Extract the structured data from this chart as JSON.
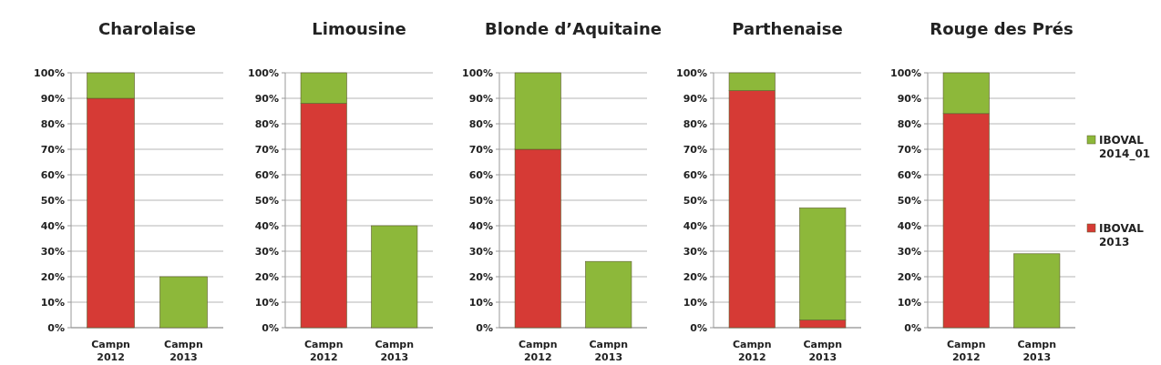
{
  "chart_data": [
    {
      "type": "bar",
      "title": "Charolaise",
      "categories": [
        "Campn 2012",
        "Campn 2013"
      ],
      "stacked": true,
      "ylim": [
        0,
        100
      ],
      "yticks": [
        {
          "value": 0,
          "label": "0%"
        },
        {
          "value": 10,
          "label": "10%"
        },
        {
          "value": 20,
          "label": "20%"
        },
        {
          "value": 30,
          "label": "30%"
        },
        {
          "value": 40,
          "label": "40%"
        },
        {
          "value": 50,
          "label": "50%"
        },
        {
          "value": 60,
          "label": "60%"
        },
        {
          "value": 70,
          "label": "70%"
        },
        {
          "value": 80,
          "label": "80%"
        },
        {
          "value": 90,
          "label": "90%"
        },
        {
          "value": 100,
          "label": "100%"
        }
      ],
      "grid": "y",
      "legend": false,
      "series": [
        {
          "color": "#d63a35",
          "values": [
            90,
            0
          ]
        },
        {
          "color": "#8db83a",
          "values": [
            10,
            20
          ]
        }
      ]
    },
    {
      "type": "bar",
      "title": "Limousine",
      "categories": [
        "Campn 2012",
        "Campn 2013"
      ],
      "stacked": true,
      "ylim": [
        0,
        100
      ],
      "yticks": [
        {
          "value": 0,
          "label": "0%"
        },
        {
          "value": 10,
          "label": "10%"
        },
        {
          "value": 20,
          "label": "20%"
        },
        {
          "value": 30,
          "label": "30%"
        },
        {
          "value": 40,
          "label": "40%"
        },
        {
          "value": 50,
          "label": "50%"
        },
        {
          "value": 60,
          "label": "60%"
        },
        {
          "value": 70,
          "label": "70%"
        },
        {
          "value": 80,
          "label": "80%"
        },
        {
          "value": 90,
          "label": "90%"
        },
        {
          "value": 100,
          "label": "100%"
        }
      ],
      "grid": "y",
      "legend": false,
      "series": [
        {
          "color": "#d63a35",
          "values": [
            88,
            0
          ]
        },
        {
          "color": "#8db83a",
          "values": [
            12,
            40
          ]
        }
      ]
    },
    {
      "type": "bar",
      "title": "Blonde d’Aquitaine",
      "categories": [
        "Campn 2012",
        "Campn 2013"
      ],
      "stacked": true,
      "ylim": [
        0,
        100
      ],
      "yticks": [
        {
          "value": 0,
          "label": "0%"
        },
        {
          "value": 10,
          "label": "10%"
        },
        {
          "value": 20,
          "label": "20%"
        },
        {
          "value": 30,
          "label": "30%"
        },
        {
          "value": 40,
          "label": "40%"
        },
        {
          "value": 50,
          "label": "50%"
        },
        {
          "value": 60,
          "label": "60%"
        },
        {
          "value": 70,
          "label": "70%"
        },
        {
          "value": 80,
          "label": "80%"
        },
        {
          "value": 90,
          "label": "90%"
        },
        {
          "value": 100,
          "label": "100%"
        }
      ],
      "grid": "y",
      "legend": false,
      "series": [
        {
          "color": "#d63a35",
          "values": [
            70,
            0
          ]
        },
        {
          "color": "#8db83a",
          "values": [
            30,
            26
          ]
        }
      ]
    },
    {
      "type": "bar",
      "title": "Parthenaise",
      "categories": [
        "Campn 2012",
        "Campn 2013"
      ],
      "stacked": true,
      "ylim": [
        0,
        100
      ],
      "yticks": [
        {
          "value": 0,
          "label": "0%"
        },
        {
          "value": 10,
          "label": "10%"
        },
        {
          "value": 20,
          "label": "20%"
        },
        {
          "value": 30,
          "label": "30%"
        },
        {
          "value": 40,
          "label": "40%"
        },
        {
          "value": 50,
          "label": "50%"
        },
        {
          "value": 60,
          "label": "60%"
        },
        {
          "value": 70,
          "label": "70%"
        },
        {
          "value": 80,
          "label": "80%"
        },
        {
          "value": 90,
          "label": "90%"
        },
        {
          "value": 100,
          "label": "100%"
        }
      ],
      "grid": "y",
      "legend": false,
      "series": [
        {
          "color": "#d63a35",
          "values": [
            93,
            3
          ]
        },
        {
          "color": "#8db83a",
          "values": [
            7,
            44
          ]
        }
      ]
    },
    {
      "type": "bar",
      "title": "Rouge des Prés",
      "categories": [
        "Campn 2012",
        "Campn 2013"
      ],
      "stacked": true,
      "ylim": [
        0,
        100
      ],
      "yticks": [
        {
          "value": 0,
          "label": "0%"
        },
        {
          "value": 10,
          "label": "10%"
        },
        {
          "value": 20,
          "label": "20%"
        },
        {
          "value": 30,
          "label": "30%"
        },
        {
          "value": 40,
          "label": "40%"
        },
        {
          "value": 50,
          "label": "50%"
        },
        {
          "value": 60,
          "label": "60%"
        },
        {
          "value": 70,
          "label": "70%"
        },
        {
          "value": 80,
          "label": "80%"
        },
        {
          "value": 90,
          "label": "90%"
        },
        {
          "value": 100,
          "label": "100%"
        }
      ],
      "grid": "y",
      "legend": "right",
      "series": [
        {
          "name": "IBOVAL 2013",
          "color": "#d63a35",
          "values": [
            84,
            0
          ]
        },
        {
          "name": "IBOVAL 2014_01",
          "color": "#8db83a",
          "values": [
            16,
            29
          ]
        }
      ]
    }
  ]
}
